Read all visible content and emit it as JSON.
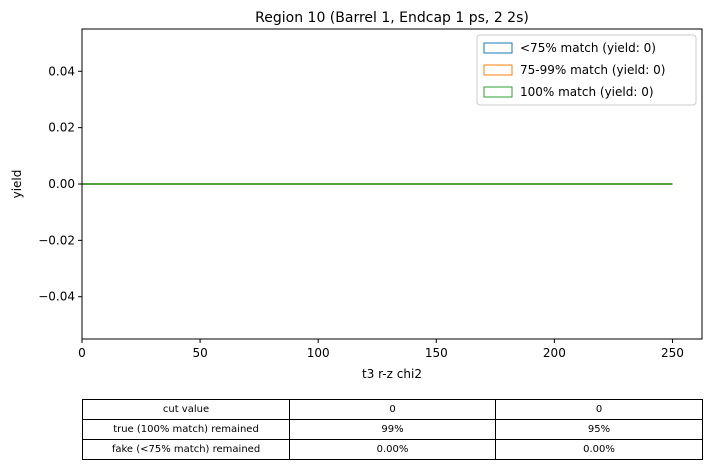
{
  "chart_data": {
    "type": "line",
    "title": "Region 10 (Barrel 1, Endcap 1 ps, 2 2s)",
    "xlabel": "t3 r-z chi2",
    "ylabel": "yield",
    "xlim": [
      0,
      262.5
    ],
    "ylim": [
      -0.055,
      0.055
    ],
    "xticks": [
      0,
      50,
      100,
      150,
      200,
      250
    ],
    "xtick_labels": [
      "0",
      "50",
      "100",
      "150",
      "200",
      "250"
    ],
    "yticks": [
      -0.04,
      -0.02,
      0.0,
      0.02,
      0.04
    ],
    "ytick_labels": [
      "−0.04",
      "−0.02",
      "0.00",
      "0.02",
      "0.04"
    ],
    "grid": false,
    "legend_position": "top-right",
    "series": [
      {
        "name": "<75% match (yield: 0)",
        "color": "#1f77b4",
        "x": [
          0,
          250
        ],
        "y": [
          0,
          0
        ]
      },
      {
        "name": "75-99% match (yield: 0)",
        "color": "#ff7f0e",
        "x": [
          0,
          250
        ],
        "y": [
          0,
          0
        ]
      },
      {
        "name": "100% match (yield: 0)",
        "color": "#2ca02c",
        "x": [
          0,
          250
        ],
        "y": [
          0,
          0
        ]
      }
    ]
  },
  "table": {
    "rows": [
      {
        "label": "cut value",
        "values": [
          "0",
          "0"
        ]
      },
      {
        "label": "true (100% match) remained",
        "values": [
          "99%",
          "95%"
        ]
      },
      {
        "label": "fake (<75% match) remained",
        "values": [
          "0.00%",
          "0.00%"
        ]
      }
    ]
  }
}
